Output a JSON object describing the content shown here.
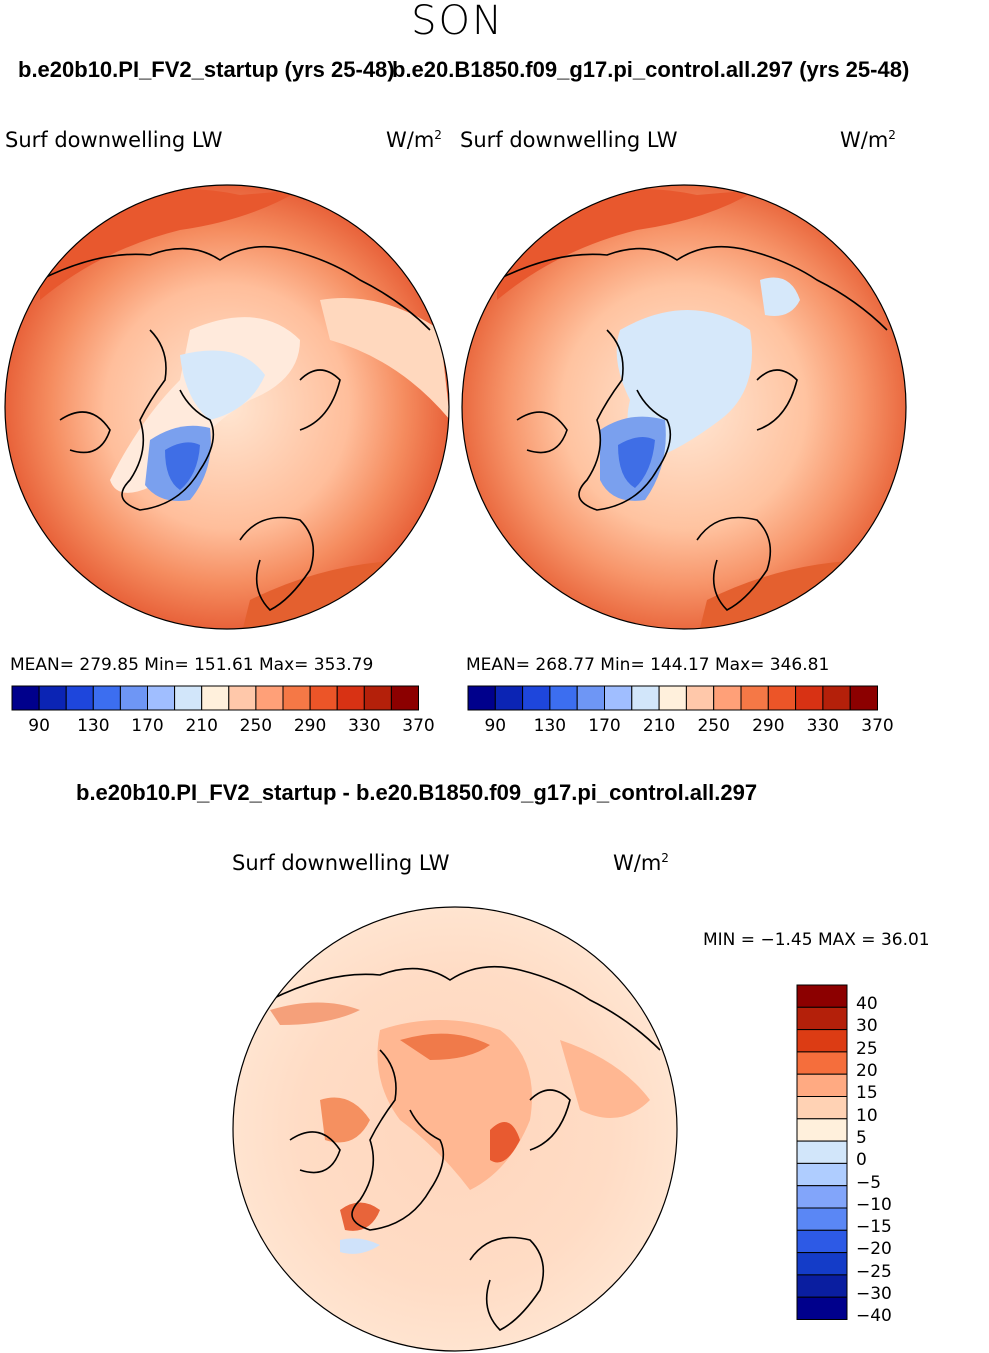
{
  "season": "SON",
  "panel_left": {
    "run_title": "b.e20b10.PI_FV2_startup (yrs 25-48)",
    "field": "Surf downwelling LW",
    "units_base": "W/m",
    "units_sup": "2",
    "stats": "MEAN= 279.85   Min= 151.61   Max= 353.79"
  },
  "panel_right": {
    "run_title": "b.e20.B1850.f09_g17.pi_control.all.297 (yrs 25-48)",
    "field": "Surf downwelling LW",
    "units_base": "W/m",
    "units_sup": "2",
    "stats": "MEAN= 268.77   Min= 144.17   Max= 346.81"
  },
  "abs_colorbar": {
    "colors": [
      "#00008c",
      "#0b24b4",
      "#1e46dc",
      "#3c6ef0",
      "#6e96f5",
      "#a0beff",
      "#d2e6fa",
      "#fff0dc",
      "#ffc8aa",
      "#ffa078",
      "#f57846",
      "#ec5528",
      "#d83214",
      "#b4200a",
      "#8c0000"
    ],
    "tick_labels": [
      "90",
      "130",
      "170",
      "210",
      "250",
      "290",
      "330",
      "370"
    ]
  },
  "diff_panel": {
    "title": "b.e20b10.PI_FV2_startup - b.e20.B1850.f09_g17.pi_control.all.297",
    "field": "Surf downwelling LW",
    "units_base": "W/m",
    "units_sup": "2",
    "minmax": "MIN =  −1.45 MAX =   36.01"
  },
  "diff_colorbar": {
    "colors": [
      "#8c0000",
      "#b4200a",
      "#dc3c14",
      "#f56e3c",
      "#ffaa82",
      "#ffd2b4",
      "#fff0dc",
      "#d2e6fa",
      "#afcdff",
      "#82a5fa",
      "#5a87f5",
      "#2d5ae6",
      "#143cc8",
      "#0a1ea0",
      "#00008c"
    ],
    "labels": [
      "40",
      "30",
      "25",
      "20",
      "15",
      "10",
      "5",
      "0",
      "−5",
      "−10",
      "−15",
      "−20",
      "−25",
      "−30",
      "−40"
    ]
  }
}
